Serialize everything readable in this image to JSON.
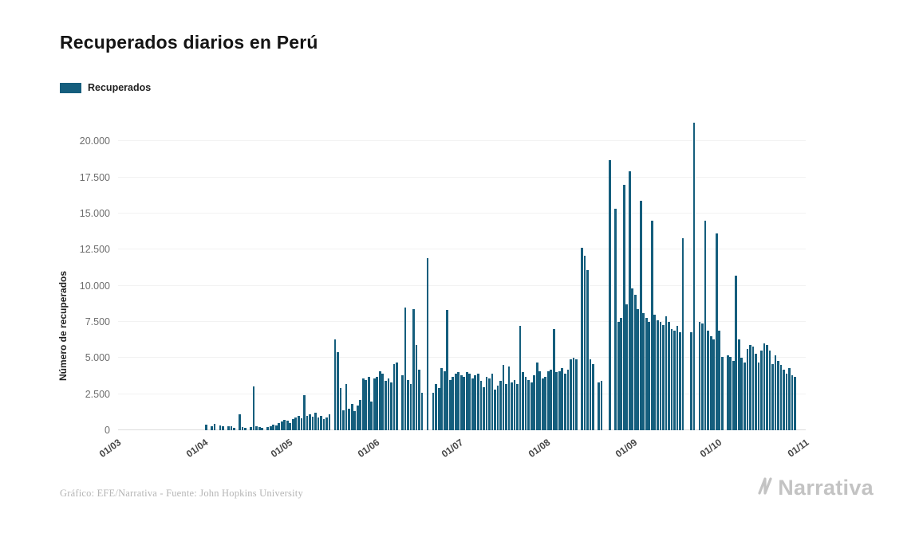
{
  "page": {
    "title": "Recuperados diarios en Perú",
    "footer_credit": "Gráfico: EFE/Narrativa - Fuente: John Hopkins University",
    "brand": "Narrativa"
  },
  "legend": {
    "label": "Recuperados"
  },
  "chart_data": {
    "type": "bar",
    "title": "Recuperados diarios en Perú",
    "xlabel": "",
    "ylabel": "Número de recuperados",
    "legend": [
      "Recuperados"
    ],
    "legend_position": "top-left",
    "grid": "faint-horizontal",
    "bar_color": "#155E7D",
    "ylim": [
      0,
      21500
    ],
    "y_ticks": [
      {
        "label": "0",
        "value": 0
      },
      {
        "label": "2.500",
        "value": 2500
      },
      {
        "label": "5.000",
        "value": 5000
      },
      {
        "label": "7.500",
        "value": 7500
      },
      {
        "label": "10.000",
        "value": 10000
      },
      {
        "label": "12.500",
        "value": 12500
      },
      {
        "label": "15.000",
        "value": 15000
      },
      {
        "label": "17.500",
        "value": 17500
      },
      {
        "label": "20.000",
        "value": 20000
      }
    ],
    "x_ticks": [
      {
        "label": "01/03",
        "day": 0
      },
      {
        "label": "01/04",
        "day": 31
      },
      {
        "label": "01/05",
        "day": 61
      },
      {
        "label": "01/06",
        "day": 92
      },
      {
        "label": "01/07",
        "day": 122
      },
      {
        "label": "01/08",
        "day": 153
      },
      {
        "label": "01/09",
        "day": 184
      },
      {
        "label": "01/10",
        "day": 214
      },
      {
        "label": "01/11",
        "day": 245
      }
    ],
    "total_days": 245,
    "values": [
      0,
      0,
      0,
      0,
      0,
      0,
      0,
      0,
      0,
      0,
      0,
      0,
      0,
      0,
      0,
      0,
      0,
      0,
      0,
      0,
      0,
      0,
      0,
      0,
      0,
      0,
      0,
      0,
      0,
      0,
      0,
      400,
      0,
      300,
      450,
      0,
      350,
      300,
      0,
      250,
      300,
      150,
      0,
      1100,
      200,
      150,
      0,
      200,
      3050,
      250,
      200,
      150,
      0,
      200,
      300,
      400,
      350,
      500,
      600,
      700,
      650,
      500,
      800,
      900,
      1000,
      850,
      2400,
      1000,
      1100,
      950,
      1200,
      900,
      1000,
      800,
      900,
      1100,
      0,
      6300,
      5400,
      2900,
      1400,
      3200,
      1500,
      1800,
      1300,
      1700,
      2100,
      3600,
      3500,
      3700,
      2000,
      3600,
      3700,
      4100,
      3900,
      3400,
      3600,
      3300,
      4600,
      4700,
      0,
      3800,
      8500,
      3500,
      3200,
      8400,
      5900,
      4200,
      2600,
      0,
      11900,
      0,
      2600,
      3200,
      2900,
      4300,
      4100,
      8300,
      3500,
      3700,
      3900,
      4000,
      3800,
      3700,
      4000,
      3900,
      3600,
      3800,
      3900,
      3400,
      3000,
      3700,
      3600,
      3900,
      2800,
      3100,
      3400,
      4500,
      3200,
      4400,
      3300,
      3500,
      3200,
      7200,
      4000,
      3700,
      3500,
      3300,
      3800,
      4700,
      4100,
      3600,
      3700,
      4100,
      4200,
      7000,
      4000,
      4100,
      4300,
      3900,
      4200,
      4900,
      5000,
      4900,
      0,
      12600,
      12100,
      11100,
      4900,
      4600,
      0,
      3300,
      3400,
      0,
      0,
      18700,
      0,
      15300,
      7500,
      7800,
      17000,
      8700,
      17900,
      9800,
      9400,
      8400,
      15900,
      8100,
      7800,
      7500,
      14500,
      8000,
      7600,
      7500,
      7300,
      7900,
      7500,
      7000,
      6900,
      7200,
      6800,
      13300,
      0,
      0,
      6800,
      21300,
      0,
      7500,
      7400,
      14500,
      6900,
      6500,
      6300,
      13600,
      6900,
      5100,
      0,
      5200,
      5100,
      4800,
      10700,
      6300,
      5000,
      4700,
      5600,
      5900,
      5800,
      5300,
      4700,
      5500,
      6000,
      5900,
      5500,
      4600,
      5200,
      4800,
      4500,
      4200,
      3900,
      4300,
      3800,
      3700,
      0,
      0,
      0
    ]
  }
}
